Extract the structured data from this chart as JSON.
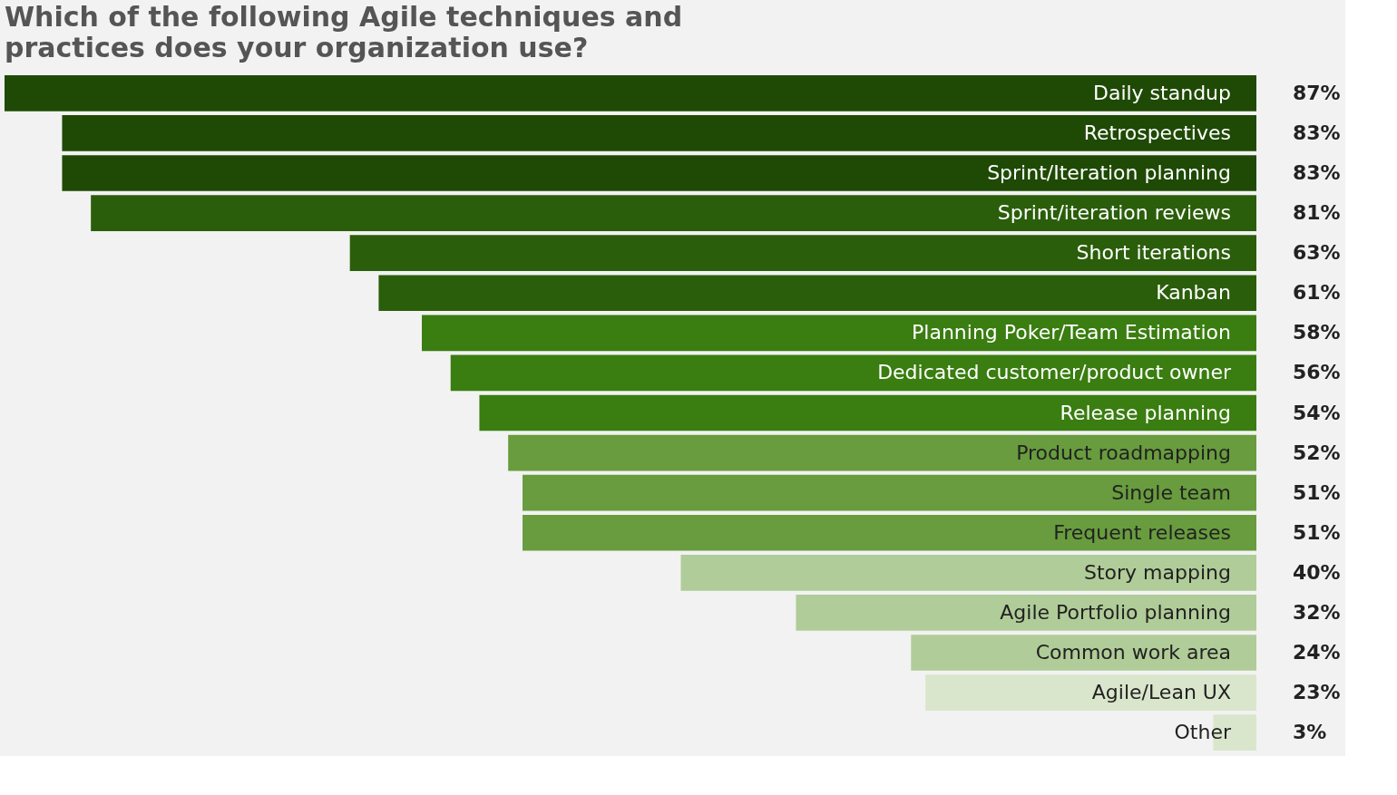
{
  "chart_data": {
    "type": "bar",
    "orientation": "horizontal",
    "title": "Which of the following Agile techniques and practices does your organization use?",
    "categories": [
      "Daily standup",
      "Retrospectives",
      "Sprint/Iteration planning",
      "Sprint/iteration reviews",
      "Short iterations",
      "Kanban",
      "Planning Poker/Team Estimation",
      "Dedicated customer/product owner",
      "Release planning",
      "Product roadmapping",
      "Single team",
      "Frequent releases",
      "Story mapping",
      "Agile Portfolio planning",
      "Common work area",
      "Agile/Lean UX",
      "Other"
    ],
    "values": [
      87,
      83,
      83,
      81,
      63,
      61,
      58,
      56,
      54,
      52,
      51,
      51,
      40,
      32,
      24,
      23,
      3
    ],
    "colors": [
      "#1f4a05",
      "#1f4a05",
      "#1f4a05",
      "#2b5e0b",
      "#2b5e0b",
      "#2b5e0b",
      "#3a7d10",
      "#3a7d10",
      "#3a7d10",
      "#689c3e",
      "#689c3e",
      "#689c3e",
      "#b0cc98",
      "#b0cc98",
      "#b0cc98",
      "#d9e6cb",
      "#d9e6cb"
    ],
    "value_labels": [
      "87%",
      "83%",
      "83%",
      "81%",
      "63%",
      "61%",
      "58%",
      "56%",
      "54%",
      "52%",
      "51%",
      "51%",
      "40%",
      "32%",
      "24%",
      "23%",
      "3%"
    ]
  }
}
